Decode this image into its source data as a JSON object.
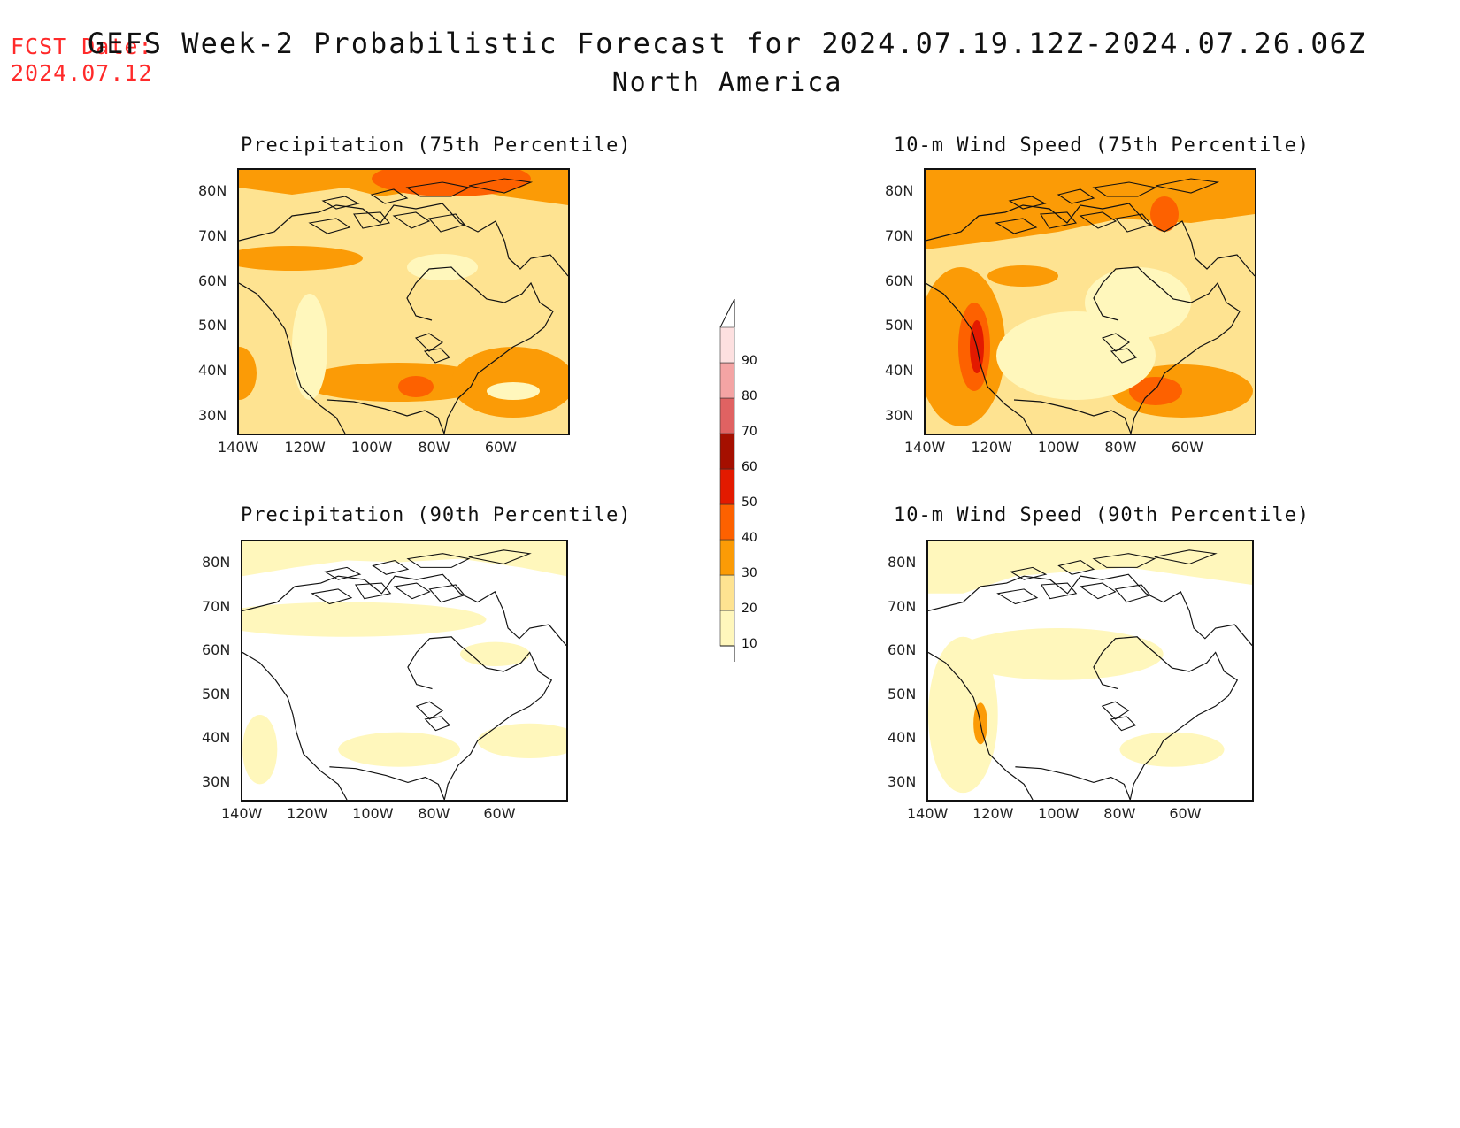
{
  "forecast_date": {
    "label": "FCST Date:",
    "value": "2024.07.12"
  },
  "title": "GEFS Week-2 Probabilistic Forecast for 2024.07.19.12Z-2024.07.26.06Z",
  "subtitle": "North America",
  "panels": [
    {
      "title": "Precipitation (75th Percentile)"
    },
    {
      "title": "10-m Wind Speed (75th Percentile)"
    },
    {
      "title": "Precipitation (90th Percentile)"
    },
    {
      "title": "10-m Wind Speed (90th Percentile)"
    }
  ],
  "lat_labels": [
    "80N",
    "70N",
    "60N",
    "50N",
    "40N",
    "30N"
  ],
  "lon_labels": [
    "140W",
    "120W",
    "100W",
    "80W",
    "60W"
  ],
  "colorbar": {
    "levels": [
      "10",
      "20",
      "30",
      "40",
      "50",
      "60",
      "70",
      "80",
      "90"
    ],
    "colors": [
      "#fff7bc",
      "#fee391",
      "#fb9b06",
      "#fd6100",
      "#e31a00",
      "#a50f00",
      "#e06262",
      "#f4a4a4",
      "#fde0e0"
    ]
  }
}
